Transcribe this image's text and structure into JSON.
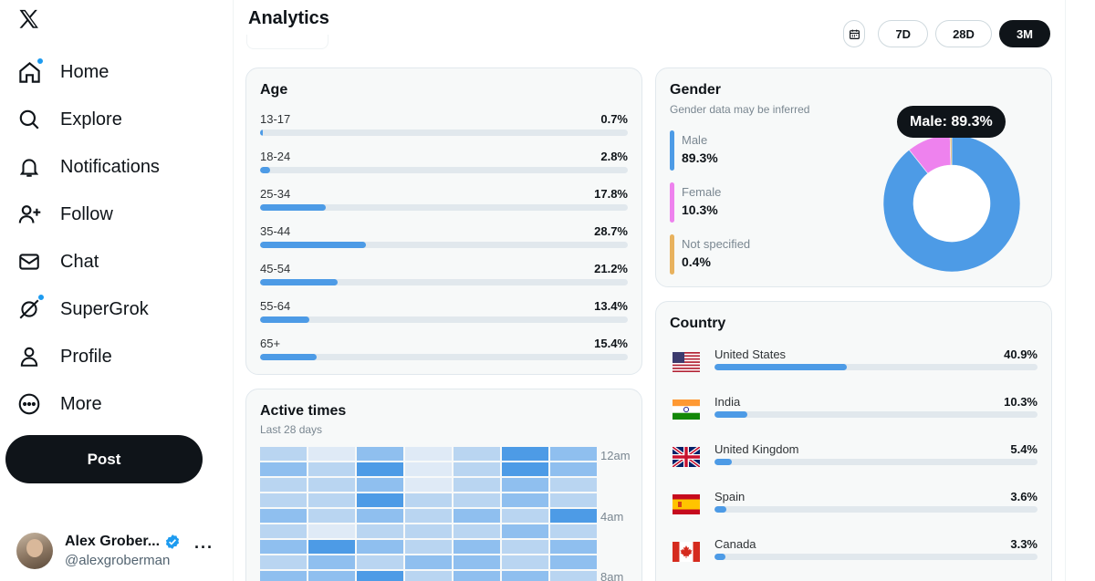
{
  "sidebar": {
    "nav": [
      {
        "label": "Home",
        "icon": "home-icon",
        "dot": true
      },
      {
        "label": "Explore",
        "icon": "search-icon",
        "dot": false
      },
      {
        "label": "Notifications",
        "icon": "bell-icon",
        "dot": false
      },
      {
        "label": "Follow",
        "icon": "add-user-icon",
        "dot": false
      },
      {
        "label": "Chat",
        "icon": "envelope-icon",
        "dot": false
      },
      {
        "label": "SuperGrok",
        "icon": "grok-icon",
        "dot": true
      },
      {
        "label": "Profile",
        "icon": "person-icon",
        "dot": false
      },
      {
        "label": "More",
        "icon": "more-circle-icon",
        "dot": false
      }
    ],
    "post_label": "Post",
    "account": {
      "name": "Alex Grober...",
      "handle": "@alexgroberman",
      "more": "···"
    }
  },
  "header": {
    "title": "Analytics",
    "ranges": [
      {
        "label": "7D",
        "active": false
      },
      {
        "label": "28D",
        "active": false
      },
      {
        "label": "3M",
        "active": true
      }
    ]
  },
  "age": {
    "title": "Age",
    "rows": [
      {
        "label": "13-17",
        "value": "0.7%",
        "pct": 0.7
      },
      {
        "label": "18-24",
        "value": "2.8%",
        "pct": 2.8
      },
      {
        "label": "25-34",
        "value": "17.8%",
        "pct": 17.8
      },
      {
        "label": "35-44",
        "value": "28.7%",
        "pct": 28.7
      },
      {
        "label": "45-54",
        "value": "21.2%",
        "pct": 21.2
      },
      {
        "label": "55-64",
        "value": "13.4%",
        "pct": 13.4
      },
      {
        "label": "65+",
        "value": "15.4%",
        "pct": 15.4
      }
    ]
  },
  "gender": {
    "title": "Gender",
    "subtitle": "Gender data may be inferred",
    "items": [
      {
        "label": "Male",
        "value": "89.3%",
        "pct": 89.3,
        "color": "#4d9be6"
      },
      {
        "label": "Female",
        "value": "10.3%",
        "pct": 10.3,
        "color": "#ee82ee"
      },
      {
        "label": "Not specified",
        "value": "0.4%",
        "pct": 0.4,
        "color": "#e8b25e"
      }
    ],
    "tooltip": "Male: 89.3%"
  },
  "country": {
    "title": "Country",
    "rows": [
      {
        "label": "United States",
        "value": "40.9%",
        "pct": 40.9,
        "flag": "us-flag-icon"
      },
      {
        "label": "India",
        "value": "10.3%",
        "pct": 10.3,
        "flag": "india-flag-icon"
      },
      {
        "label": "United Kingdom",
        "value": "5.4%",
        "pct": 5.4,
        "flag": "uk-flag-icon"
      },
      {
        "label": "Spain",
        "value": "3.6%",
        "pct": 3.6,
        "flag": "spain-flag-icon"
      },
      {
        "label": "Canada",
        "value": "3.3%",
        "pct": 3.3,
        "flag": "canada-flag-icon"
      }
    ]
  },
  "active_times": {
    "title": "Active times",
    "subtitle": "Last 28 days",
    "hour_labels": [
      "12am",
      "4am",
      "8am"
    ],
    "intensity": [
      [
        2,
        1,
        3,
        1,
        2,
        4,
        3
      ],
      [
        3,
        2,
        4,
        1,
        2,
        4,
        3
      ],
      [
        2,
        2,
        3,
        1,
        2,
        3,
        2
      ],
      [
        2,
        2,
        4,
        2,
        2,
        3,
        2
      ],
      [
        3,
        2,
        3,
        2,
        3,
        2,
        4
      ],
      [
        2,
        1,
        2,
        2,
        2,
        3,
        2
      ],
      [
        3,
        4,
        3,
        2,
        3,
        2,
        3
      ],
      [
        2,
        3,
        2,
        3,
        3,
        2,
        3
      ],
      [
        3,
        3,
        4,
        2,
        3,
        3,
        2
      ]
    ]
  }
}
